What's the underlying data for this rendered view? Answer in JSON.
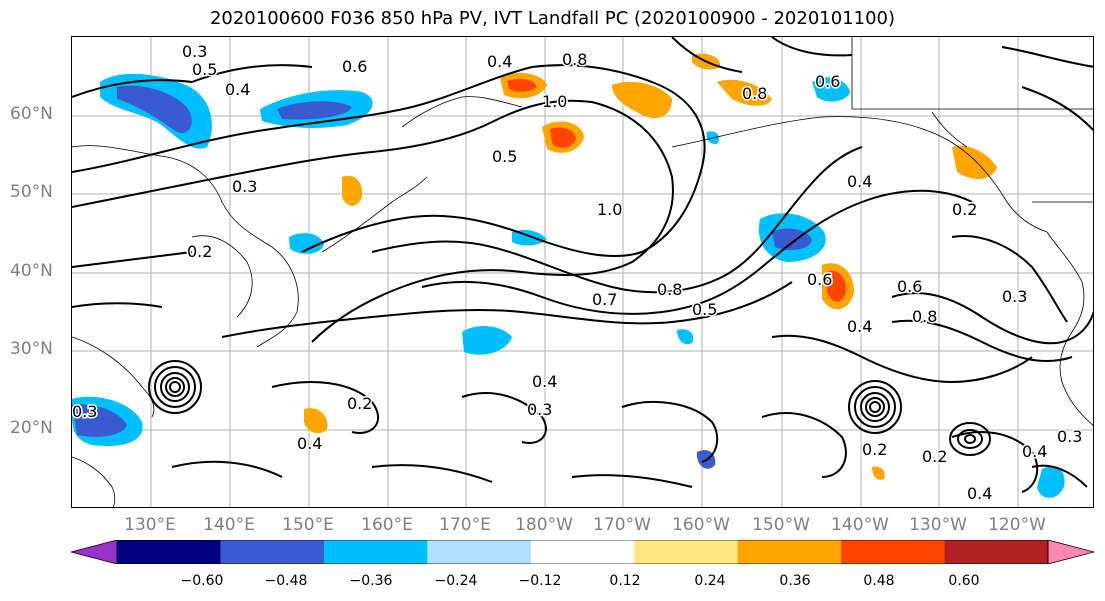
{
  "title": "2020100600 F036 850 hPa PV, IVT Landfall PC (2020100900 - 2020101100)",
  "lat_labels": [
    "60°N",
    "50°N",
    "40°N",
    "30°N",
    "20°N"
  ],
  "lon_labels": [
    "130°E",
    "140°E",
    "150°E",
    "160°E",
    "170°E",
    "180°W",
    "170°W",
    "160°W",
    "150°W",
    "140°W",
    "130°W",
    "120°W"
  ],
  "contour_labels": [
    "0.3",
    "0.5",
    "0.4",
    "0.6",
    "0.8",
    "1.0",
    "0.8",
    "0.6",
    "0.4",
    "0.5",
    "0.3",
    "0.2",
    "0.3",
    "1.0",
    "0.4",
    "0.2",
    "0.7",
    "0.8",
    "0.5",
    "0.6",
    "0.4",
    "0.6",
    "0.8",
    "0.3",
    "0.4",
    "0.3",
    "0.4",
    "0.2",
    "0.2",
    "0.4",
    "0.4",
    "0.3",
    "0.2"
  ],
  "colorbar": {
    "colors": [
      "#9932cc",
      "#000080",
      "#3a5bd0",
      "#00bfff",
      "#b0e0ff",
      "#ffffff",
      "#ffe680",
      "#ffa500",
      "#ff4500",
      "#b22222",
      "#ff85b3"
    ],
    "tick_labels": [
      "−0.60",
      "−0.48",
      "−0.36",
      "−0.24",
      "−0.12",
      "0.12",
      "0.24",
      "0.36",
      "0.48",
      "0.60"
    ]
  }
}
